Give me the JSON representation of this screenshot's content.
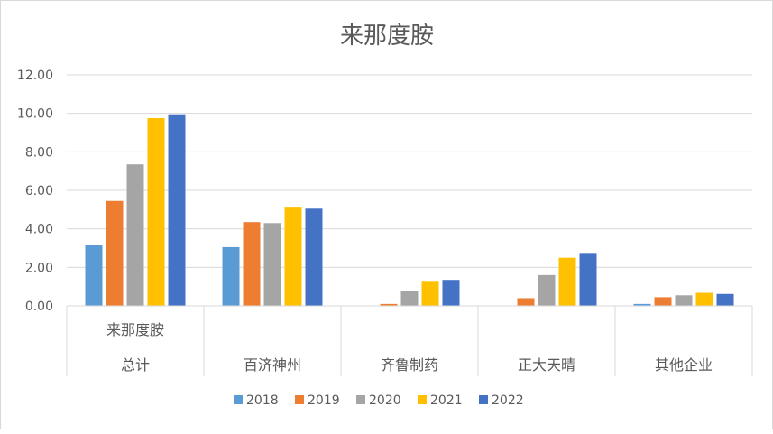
{
  "chart_data": {
    "type": "bar",
    "title": "来那度胺",
    "xlabel": "",
    "ylabel": "",
    "ylim": [
      0,
      12
    ],
    "ytick_step": 2,
    "ytick_labels": [
      "0.00",
      "2.00",
      "4.00",
      "6.00",
      "8.00",
      "10.00",
      "12.00"
    ],
    "grid": true,
    "legend_position": "bottom",
    "categories": [
      {
        "label": "来那度胺",
        "group": "总计"
      },
      {
        "label": "",
        "group": "百济神州"
      },
      {
        "label": "",
        "group": "齐鲁制药"
      },
      {
        "label": "",
        "group": "正大天晴"
      },
      {
        "label": "",
        "group": "其他企业"
      }
    ],
    "series": [
      {
        "name": "2018",
        "color": "#5B9BD5",
        "values": [
          3.15,
          3.05,
          0,
          0,
          0.1
        ]
      },
      {
        "name": "2019",
        "color": "#ED7D31",
        "values": [
          5.45,
          4.35,
          0.1,
          0.4,
          0.45
        ]
      },
      {
        "name": "2020",
        "color": "#A5A5A5",
        "values": [
          7.35,
          4.3,
          0.75,
          1.6,
          0.55
        ]
      },
      {
        "name": "2021",
        "color": "#FFC000",
        "values": [
          9.75,
          5.15,
          1.3,
          2.5,
          0.68
        ]
      },
      {
        "name": "2022",
        "color": "#4472C4",
        "values": [
          9.95,
          5.05,
          1.35,
          2.75,
          0.62
        ]
      }
    ]
  }
}
